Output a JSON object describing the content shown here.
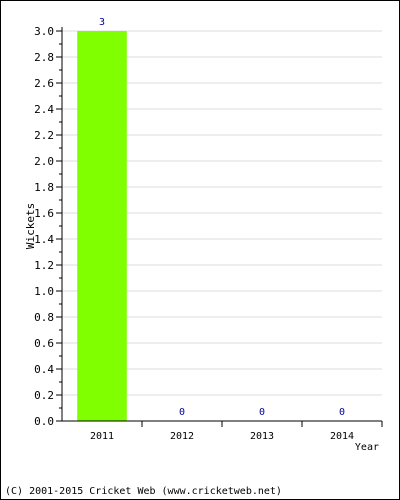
{
  "chart_data": {
    "type": "bar",
    "categories": [
      "2011",
      "2012",
      "2013",
      "2014"
    ],
    "values": [
      3,
      0,
      0,
      0
    ],
    "data_labels": [
      "3",
      "0",
      "0",
      "0"
    ],
    "xlabel": "Year",
    "ylabel": "Wickets",
    "ylim": [
      0,
      3.0
    ],
    "yticks": [
      "0.0",
      "0.2",
      "0.4",
      "0.6",
      "0.8",
      "1.0",
      "1.2",
      "1.4",
      "1.6",
      "1.8",
      "2.0",
      "2.2",
      "2.4",
      "2.6",
      "2.8",
      "3.0"
    ],
    "grid": true,
    "bar_color": "#80ff00",
    "label_color": "#000099"
  },
  "footer": "(C) 2001-2015 Cricket Web (www.cricketweb.net)"
}
